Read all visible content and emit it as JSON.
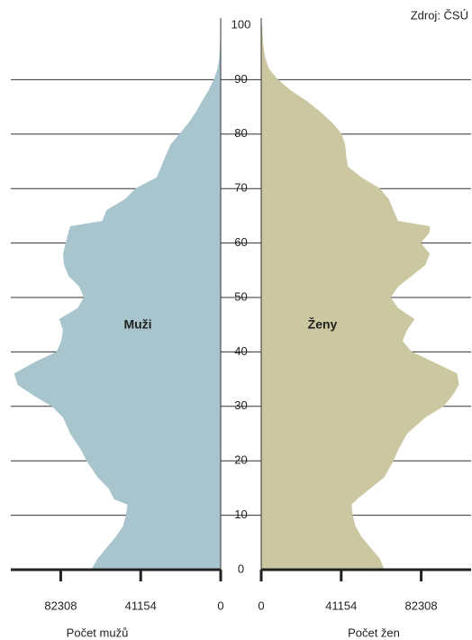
{
  "chart_data": {
    "type": "pyramid",
    "source": "Zdroj: ČSÚ",
    "x": [
      0,
      2,
      4,
      6,
      8,
      10,
      12,
      13,
      15,
      17,
      20,
      22,
      25,
      28,
      30,
      32,
      34,
      36,
      38,
      40,
      42,
      44,
      46,
      48,
      50,
      52,
      54,
      56,
      58,
      60,
      62,
      63,
      64,
      66,
      68,
      70,
      72,
      74,
      76,
      78,
      80,
      82,
      84,
      86,
      88,
      90,
      92,
      94,
      96,
      98,
      100
    ],
    "series": [
      {
        "name": "Muži",
        "axis_label": "Počet mužů",
        "color": "#a8c5cd",
        "values": [
          66400,
          63100,
          58500,
          53800,
          50000,
          48600,
          47700,
          54700,
          57500,
          63100,
          68800,
          71600,
          77200,
          80900,
          86500,
          95900,
          104300,
          106000,
          95900,
          84200,
          81800,
          80900,
          82800,
          73400,
          70200,
          72500,
          78100,
          80400,
          80900,
          79500,
          78100,
          77200,
          60800,
          58500,
          49100,
          43500,
          32700,
          30400,
          28100,
          25700,
          21000,
          16400,
          12600,
          9400,
          6100,
          3300,
          1400,
          500,
          200,
          0,
          0
        ]
      },
      {
        "name": "Ženy",
        "axis_label": "Počet žen",
        "color": "#cbc7a0",
        "values": [
          63100,
          60800,
          56100,
          51400,
          48200,
          46800,
          46300,
          49100,
          56100,
          63100,
          67800,
          70200,
          74800,
          84200,
          93500,
          98200,
          101500,
          100600,
          88900,
          77200,
          72500,
          74800,
          78600,
          70200,
          66400,
          70200,
          77200,
          84200,
          86500,
          81800,
          86500,
          86500,
          70200,
          67800,
          65500,
          60800,
          51400,
          44400,
          43500,
          43000,
          41200,
          36500,
          30400,
          23400,
          15000,
          8400,
          3700,
          1900,
          900,
          500,
          300
        ]
      }
    ],
    "xlim": [
      0,
      108000
    ],
    "xticks": [
      0,
      41154,
      82308
    ],
    "ylim": [
      0,
      100
    ],
    "yticks": [
      0,
      10,
      20,
      30,
      40,
      50,
      60,
      70,
      80,
      90,
      100
    ],
    "grid": true
  }
}
